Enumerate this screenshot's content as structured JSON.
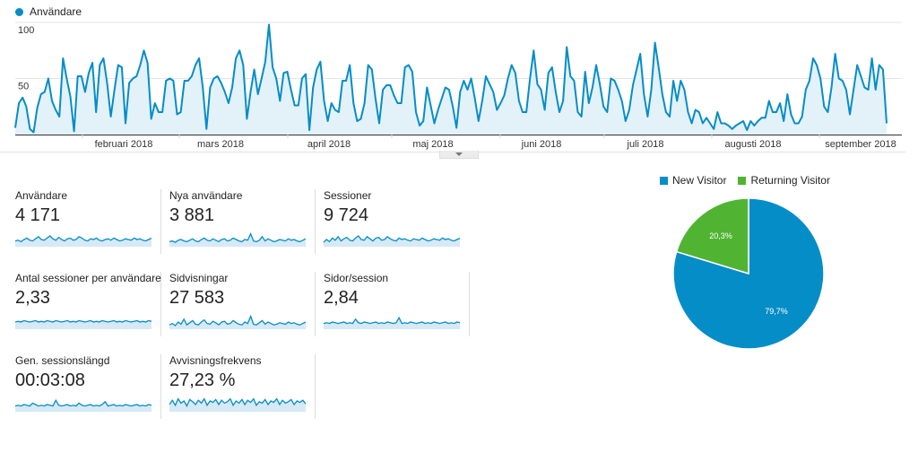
{
  "legend": {
    "series_name": "Användare",
    "color": "#058dc7"
  },
  "chart_data": [
    {
      "type": "line",
      "series": [
        {
          "name": "Användare",
          "values": [
            6,
            28,
            33,
            25,
            5,
            2,
            24,
            36,
            38,
            50,
            30,
            22,
            16,
            68,
            50,
            34,
            3,
            52,
            52,
            38,
            55,
            64,
            20,
            62,
            68,
            46,
            16,
            40,
            62,
            60,
            10,
            46,
            50,
            52,
            62,
            75,
            64,
            14,
            28,
            20,
            20,
            48,
            50,
            48,
            18,
            20,
            48,
            48,
            52,
            62,
            68,
            42,
            5,
            42,
            50,
            52,
            46,
            38,
            28,
            42,
            68,
            75,
            62,
            14,
            38,
            58,
            36,
            50,
            65,
            98,
            60,
            50,
            30,
            55,
            56,
            40,
            26,
            26,
            50,
            54,
            4,
            42,
            58,
            65,
            30,
            12,
            28,
            22,
            20,
            48,
            48,
            62,
            28,
            12,
            14,
            28,
            62,
            58,
            32,
            10,
            40,
            44,
            44,
            35,
            28,
            28,
            60,
            62,
            56,
            20,
            8,
            12,
            42,
            26,
            10,
            22,
            32,
            42,
            40,
            25,
            6,
            38,
            48,
            40,
            50,
            32,
            12,
            30,
            52,
            45,
            38,
            22,
            28,
            35,
            50,
            62,
            55,
            30,
            20,
            20,
            50,
            75,
            45,
            40,
            22,
            55,
            60,
            38,
            20,
            30,
            78,
            52,
            48,
            20,
            16,
            56,
            28,
            42,
            62,
            45,
            25,
            20,
            50,
            48,
            40,
            30,
            12,
            22,
            44,
            58,
            72,
            36,
            16,
            40,
            82,
            60,
            36,
            20,
            16,
            48,
            30,
            48,
            40,
            20,
            10,
            22,
            20,
            10,
            15,
            10,
            5,
            20,
            10,
            10,
            8,
            5,
            8,
            10,
            12,
            4,
            12,
            8,
            12,
            15,
            15,
            30,
            20,
            20,
            28,
            12,
            36,
            18,
            10,
            10,
            16,
            40,
            48,
            68,
            62,
            50,
            25,
            20,
            42,
            72,
            50,
            48,
            40,
            18,
            40,
            62,
            52,
            42,
            40,
            68,
            40,
            62,
            58,
            10
          ]
        }
      ],
      "x_tick_labels": [
        "februari 2018",
        "mars 2018",
        "april 2018",
        "maj 2018",
        "juni 2018",
        "juli 2018",
        "augusti 2018",
        "september 2018"
      ],
      "y_tick_labels": [
        "100",
        "50"
      ],
      "ylim": [
        0,
        100
      ],
      "grid": true,
      "legend": "top-left"
    },
    {
      "type": "pie",
      "labels": [
        "New Visitor",
        "Returning Visitor"
      ],
      "values": [
        79.7,
        20.3
      ],
      "value_labels": [
        "79,7%",
        "20,3%"
      ],
      "colors": [
        "#058dc7",
        "#50b432"
      ],
      "legend": "top"
    }
  ],
  "metrics": [
    {
      "label": "Användare",
      "value": "4 171",
      "trend": [
        8,
        9,
        7,
        10,
        12,
        9,
        8,
        11,
        14,
        10,
        9,
        12,
        15,
        11,
        9,
        13,
        10,
        8,
        11,
        12,
        9,
        10,
        14,
        12,
        9,
        8,
        11,
        10,
        12,
        9,
        8,
        10,
        11,
        9,
        12,
        10,
        8,
        9,
        11,
        10,
        9,
        12,
        10,
        11,
        9,
        8,
        10,
        12
      ]
    },
    {
      "label": "Nya användare",
      "value": "3 881",
      "trend": [
        7,
        8,
        6,
        9,
        10,
        8,
        7,
        9,
        11,
        8,
        7,
        10,
        12,
        9,
        8,
        11,
        9,
        7,
        10,
        11,
        8,
        9,
        12,
        10,
        8,
        7,
        10,
        9,
        18,
        8,
        7,
        9,
        14,
        8,
        11,
        9,
        7,
        8,
        10,
        9,
        8,
        11,
        9,
        10,
        8,
        7,
        9,
        11
      ]
    },
    {
      "label": "Sessioner",
      "value": "9 724",
      "trend": [
        6,
        10,
        7,
        12,
        9,
        14,
        8,
        11,
        13,
        9,
        8,
        12,
        15,
        10,
        9,
        14,
        11,
        8,
        12,
        13,
        9,
        10,
        14,
        11,
        9,
        8,
        12,
        10,
        11,
        9,
        8,
        11,
        10,
        9,
        12,
        10,
        8,
        9,
        11,
        10,
        9,
        12,
        10,
        11,
        9,
        8,
        10,
        12
      ]
    },
    {
      "label": "Antal sessioner per användare",
      "value": "2,33",
      "trend": [
        10,
        11,
        10,
        12,
        11,
        10,
        11,
        12,
        10,
        11,
        10,
        12,
        11,
        10,
        12,
        11,
        10,
        11,
        12,
        10,
        11,
        10,
        12,
        11,
        10,
        11,
        12,
        10,
        11,
        10,
        12,
        11,
        10,
        11,
        12,
        10,
        11,
        10,
        12,
        11,
        10,
        11,
        12,
        10,
        11,
        10,
        12,
        11
      ]
    },
    {
      "label": "Sidvisningar",
      "value": "27 583",
      "trend": [
        6,
        8,
        5,
        10,
        7,
        14,
        6,
        9,
        12,
        7,
        6,
        10,
        13,
        8,
        7,
        11,
        9,
        6,
        10,
        11,
        7,
        8,
        12,
        9,
        7,
        6,
        10,
        8,
        18,
        7,
        6,
        9,
        12,
        7,
        10,
        8,
        6,
        7,
        9,
        8,
        7,
        10,
        8,
        9,
        7,
        6,
        8,
        10
      ]
    },
    {
      "label": "Sidor/session",
      "value": "2,84",
      "trend": [
        8,
        9,
        8,
        10,
        9,
        8,
        9,
        10,
        8,
        9,
        8,
        14,
        9,
        8,
        10,
        9,
        8,
        9,
        10,
        8,
        9,
        8,
        10,
        9,
        8,
        9,
        16,
        8,
        9,
        8,
        10,
        9,
        8,
        9,
        10,
        8,
        9,
        8,
        10,
        9,
        8,
        9,
        10,
        8,
        9,
        8,
        10,
        9
      ]
    },
    {
      "label": "Gen. sessionslängd",
      "value": "00:03:08",
      "trend": [
        8,
        9,
        8,
        10,
        9,
        8,
        12,
        10,
        8,
        9,
        8,
        10,
        9,
        8,
        16,
        9,
        8,
        9,
        10,
        8,
        9,
        8,
        12,
        9,
        8,
        9,
        10,
        8,
        9,
        8,
        10,
        14,
        8,
        9,
        10,
        8,
        9,
        8,
        10,
        9,
        8,
        9,
        10,
        8,
        9,
        8,
        10,
        9
      ]
    },
    {
      "label": "Avvisningsfrekvens",
      "value": "27,23 %",
      "trend": [
        10,
        16,
        9,
        18,
        12,
        15,
        8,
        17,
        14,
        10,
        16,
        12,
        18,
        9,
        15,
        13,
        17,
        10,
        16,
        12,
        14,
        18,
        9,
        15,
        12,
        17,
        10,
        16,
        13,
        18,
        9,
        14,
        12,
        17,
        10,
        15,
        13,
        18,
        10,
        16,
        12,
        14,
        17,
        10,
        15,
        13,
        16,
        11
      ]
    }
  ]
}
